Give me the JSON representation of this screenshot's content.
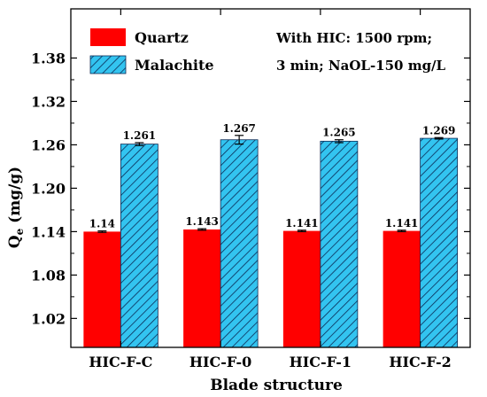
{
  "chart_data": {
    "type": "bar",
    "title": "",
    "xlabel": "Blade structure",
    "ylabel_main": "Q",
    "ylabel_sub": "e",
    "ylabel_unit": " (mg/g)",
    "ylim": [
      0.98,
      1.4
    ],
    "yticks": [
      1.02,
      1.08,
      1.14,
      1.2,
      1.26,
      1.32,
      1.38
    ],
    "ytick_labels": [
      "1.02",
      "1.08",
      "1.14",
      "1.20",
      "1.26",
      "1.32",
      "1.38"
    ],
    "categories": [
      "HIC-F-C",
      "HIC-F-0",
      "HIC-F-1",
      "HIC-F-2"
    ],
    "series": [
      {
        "name": "Quartz",
        "color": "#ff0000",
        "pattern": "solid",
        "values": [
          1.14,
          1.143,
          1.141,
          1.141
        ],
        "value_labels": [
          "1.14",
          "1.143",
          "1.141",
          "1.141"
        ],
        "errors": [
          0.001,
          0.001,
          0.001,
          0.001
        ]
      },
      {
        "name": "Malachite",
        "color": "#33c4f0",
        "pattern": "hatched",
        "values": [
          1.261,
          1.267,
          1.265,
          1.269
        ],
        "value_labels": [
          "1.261",
          "1.267",
          "1.265",
          "1.269"
        ],
        "errors": [
          0.002,
          0.006,
          0.002,
          0.001
        ]
      }
    ],
    "annotation_lines": [
      "With HIC: 1500 rpm;",
      "3 min; NaOL-150 mg/L"
    ],
    "legend_position": "top-left",
    "grid": false
  }
}
